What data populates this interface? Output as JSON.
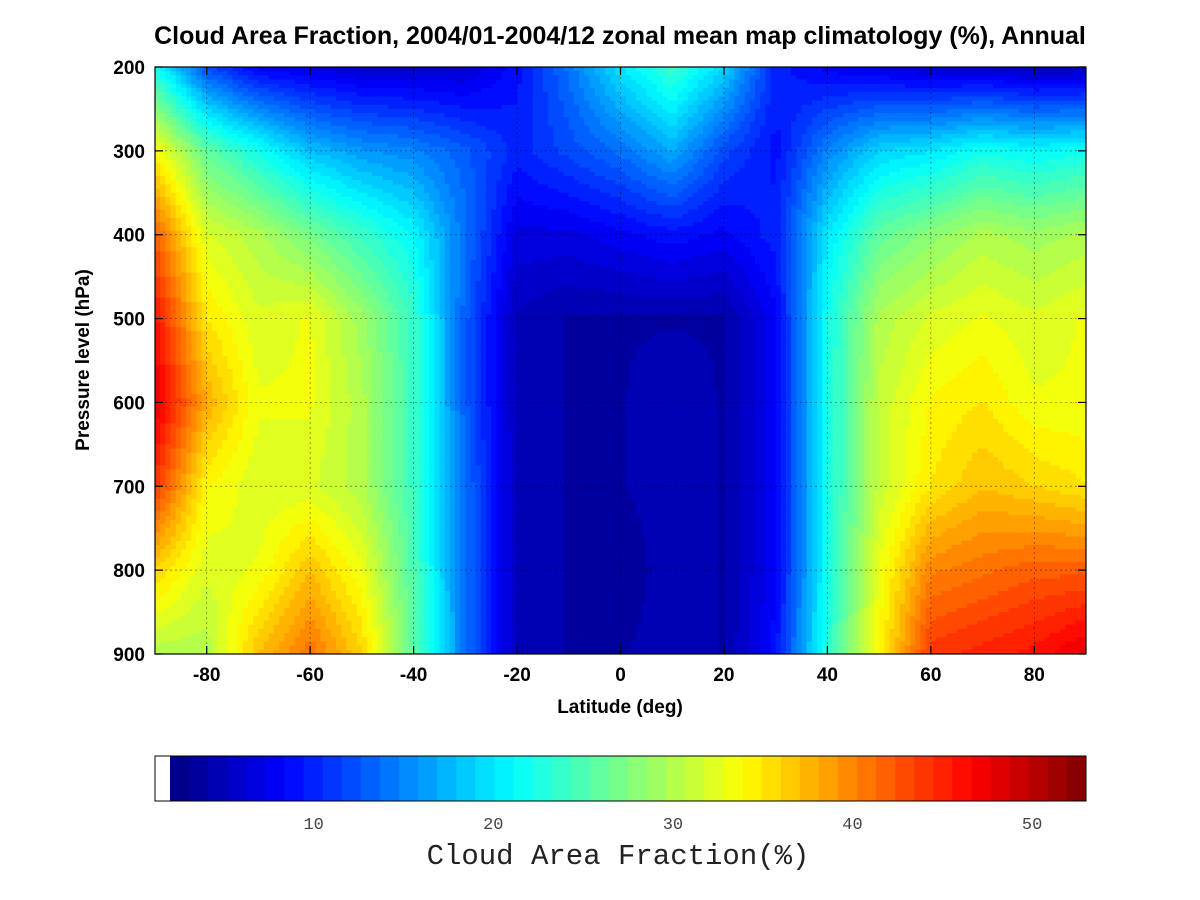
{
  "chart_data": {
    "type": "heatmap",
    "title": "Cloud Area Fraction, 2004/01-2004/12 zonal mean map climatology (%), Annual",
    "xlabel": "Latitude (deg)",
    "ylabel": "Pressure level (hPa)",
    "xlim": [
      -90,
      90
    ],
    "ylim": [
      200,
      900
    ],
    "y_inverted": true,
    "x_ticks": [
      -80,
      -60,
      -40,
      -20,
      0,
      20,
      40,
      60,
      80
    ],
    "y_ticks": [
      200,
      300,
      400,
      500,
      600,
      700,
      800,
      900
    ],
    "grid": true,
    "colormap": "jet",
    "colorbar": {
      "label": "Cloud Area Fraction(%)",
      "range": [
        2,
        53
      ],
      "ticks": [
        10,
        20,
        30,
        40,
        50
      ],
      "below_range_color": "#ffffff",
      "placement": "bottom"
    },
    "latitudes": [
      -90,
      -80,
      -70,
      -60,
      -50,
      -40,
      -30,
      -20,
      -10,
      0,
      10,
      20,
      30,
      40,
      50,
      60,
      70,
      80,
      90
    ],
    "pressure_levels": [
      200,
      300,
      400,
      500,
      600,
      700,
      800,
      900
    ],
    "values": [
      [
        22,
        12,
        8,
        7,
        6,
        6,
        6,
        9,
        14,
        20,
        24,
        19,
        10,
        8,
        7,
        6,
        6,
        5,
        5
      ],
      [
        34,
        26,
        22,
        18,
        16,
        15,
        13,
        10,
        12,
        14,
        17,
        12,
        9,
        15,
        19,
        20,
        22,
        21,
        22
      ],
      [
        42,
        32,
        30,
        27,
        24,
        21,
        14,
        7,
        7,
        8,
        9,
        8,
        10,
        20,
        26,
        28,
        30,
        29,
        30
      ],
      [
        46,
        35,
        32,
        33,
        29,
        24,
        13,
        5,
        4,
        4,
        4,
        4,
        8,
        22,
        30,
        32,
        33,
        32,
        33
      ],
      [
        48,
        38,
        33,
        33,
        30,
        24,
        13,
        5,
        4,
        4,
        5,
        4,
        8,
        22,
        31,
        34,
        35,
        33,
        33
      ],
      [
        44,
        34,
        32,
        32,
        30,
        24,
        14,
        5,
        4,
        4,
        5,
        4,
        8,
        22,
        31,
        35,
        37,
        36,
        35
      ],
      [
        36,
        32,
        33,
        37,
        33,
        25,
        14,
        5,
        4,
        3,
        5,
        4,
        8,
        22,
        33,
        40,
        41,
        42,
        42
      ],
      [
        30,
        30,
        37,
        41,
        36,
        26,
        14,
        5,
        4,
        4,
        5,
        4,
        9,
        23,
        34,
        44,
        45,
        46,
        48
      ]
    ]
  }
}
